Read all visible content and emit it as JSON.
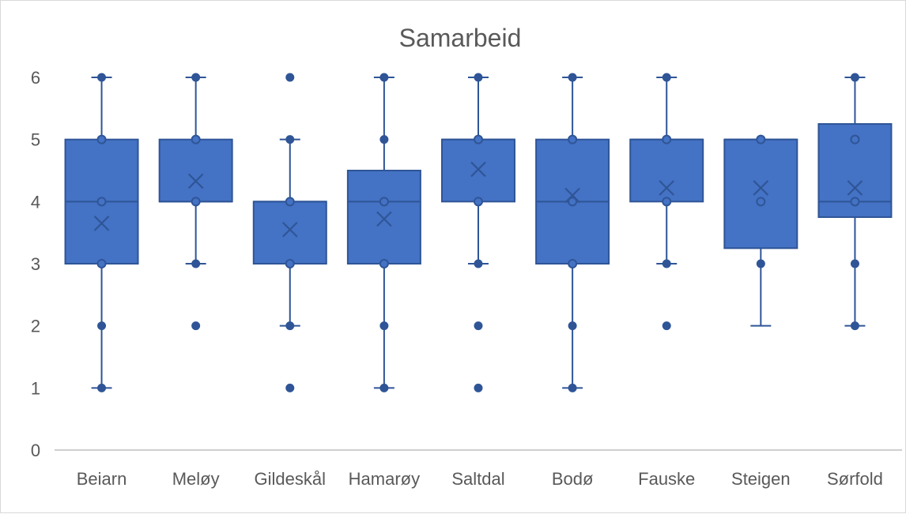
{
  "chart_data": {
    "type": "boxplot",
    "title": "Samarbeid",
    "xlabel": "",
    "ylabel": "",
    "ylim": [
      0,
      6
    ],
    "yticks": [
      0,
      1,
      2,
      3,
      4,
      5,
      6
    ],
    "grid": false,
    "legend": "none",
    "colors": {
      "box_fill": "#4472C4",
      "box_stroke": "#2F5597",
      "line": "#2F5597",
      "marker": "#2F5597",
      "axis": "#bfbfbf"
    },
    "categories": [
      "Beiarn",
      "Meløy",
      "Gildeskål",
      "Hamarøy",
      "Saltdal",
      "Bodø",
      "Fauske",
      "Steigen",
      "Sørfold"
    ],
    "boxes": [
      {
        "category": "Beiarn",
        "whisker_low": 1,
        "q1": 3,
        "median": 4,
        "q3": 5,
        "whisker_high": 6,
        "mean": 3.65,
        "points": [
          1,
          2,
          3,
          4,
          5,
          6
        ]
      },
      {
        "category": "Meløy",
        "whisker_low": 3,
        "q1": 4,
        "median": 4,
        "q3": 5,
        "whisker_high": 6,
        "mean": 4.33,
        "points": [
          2,
          3,
          4,
          5,
          6
        ]
      },
      {
        "category": "Gildeskål",
        "whisker_low": 2,
        "q1": 3,
        "median": 4,
        "q3": 4,
        "whisker_high": 5,
        "mean": 3.55,
        "points": [
          1,
          2,
          3,
          4,
          5,
          6
        ]
      },
      {
        "category": "Hamarøy",
        "whisker_low": 1,
        "q1": 3,
        "median": 4,
        "q3": 4.5,
        "whisker_high": 6,
        "mean": 3.72,
        "points": [
          1,
          2,
          3,
          4,
          5,
          6
        ]
      },
      {
        "category": "Saltdal",
        "whisker_low": 3,
        "q1": 4,
        "median": 5,
        "q3": 5,
        "whisker_high": 6,
        "mean": 4.52,
        "points": [
          1,
          2,
          3,
          4,
          5,
          6
        ]
      },
      {
        "category": "Bodø",
        "whisker_low": 1,
        "q1": 3,
        "median": 4,
        "q3": 5,
        "whisker_high": 6,
        "mean": 4.1,
        "points": [
          1,
          2,
          3,
          4,
          5,
          6
        ]
      },
      {
        "category": "Fauske",
        "whisker_low": 3,
        "q1": 4,
        "median": 5,
        "q3": 5,
        "whisker_high": 6,
        "mean": 4.22,
        "points": [
          2,
          3,
          4,
          5,
          6
        ]
      },
      {
        "category": "Steigen",
        "whisker_low": 2,
        "q1": 3.25,
        "median": 5,
        "q3": 5,
        "whisker_high": 5,
        "mean": 4.22,
        "points": [
          3,
          4,
          5
        ]
      },
      {
        "category": "Sørfold",
        "whisker_low": 2,
        "q1": 3.75,
        "median": 4,
        "q3": 5.25,
        "whisker_high": 6,
        "mean": 4.22,
        "points": [
          2,
          3,
          4,
          5,
          6
        ]
      }
    ]
  }
}
